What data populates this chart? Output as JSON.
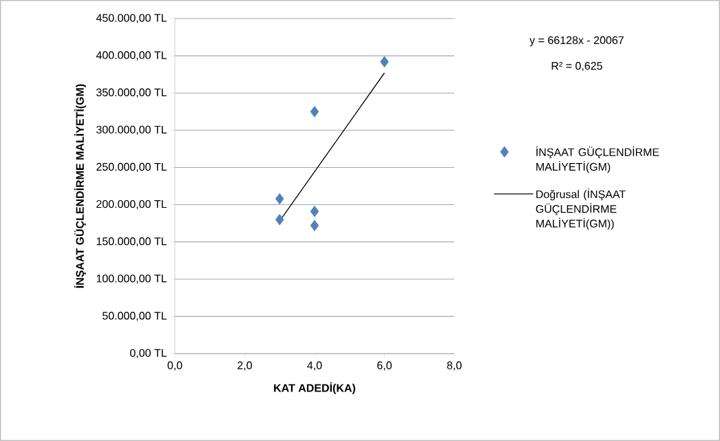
{
  "chart_data": {
    "type": "scatter",
    "xlabel": "KAT ADEDİ(KA)",
    "ylabel": "İNŞAAT GÜÇLENDİRME MALİYETİ(GM)",
    "series": [
      {
        "name": "İNŞAAT GÜÇLENDİRME MALİYETİ(GM)",
        "color": "#4f81bd",
        "x": [
          3,
          3,
          4,
          4,
          4,
          6
        ],
        "values": [
          208000,
          180000,
          325000,
          191000,
          172000,
          392000
        ]
      },
      {
        "name": "Doğrusal (İNŞAAT GÜÇLENDİRME MALİYETİ(GM))",
        "type": "line",
        "color": "#000000",
        "marker": "none",
        "line_style": "solid",
        "x": [
          3,
          6
        ],
        "values": [
          178000,
          377000
        ]
      }
    ],
    "marker": "diamond",
    "xlim": [
      0,
      8
    ],
    "ylim": [
      0,
      450000
    ],
    "xticks": [
      {
        "value": 0,
        "label": "0,0"
      },
      {
        "value": 2,
        "label": "2,0"
      },
      {
        "value": 4,
        "label": "4,0"
      },
      {
        "value": 6,
        "label": "6,0"
      },
      {
        "value": 8,
        "label": "8,0"
      }
    ],
    "yticks": [
      {
        "value": 0,
        "label": "0,00 TL"
      },
      {
        "value": 50000,
        "label": "50.000,00 TL"
      },
      {
        "value": 100000,
        "label": "100.000,00 TL"
      },
      {
        "value": 150000,
        "label": "150.000,00 TL"
      },
      {
        "value": 200000,
        "label": "200.000,00 TL"
      },
      {
        "value": 250000,
        "label": "250.000,00 TL"
      },
      {
        "value": 300000,
        "label": "300.000,00 TL"
      },
      {
        "value": 350000,
        "label": "350.000,00 TL"
      },
      {
        "value": 400000,
        "label": "400.000,00 TL"
      },
      {
        "value": 450000,
        "label": "450.000,00 TL"
      }
    ],
    "grid": "y",
    "legend": "right",
    "annotations": [
      "y = 66128x - 20067",
      "R² = 0,625"
    ]
  }
}
